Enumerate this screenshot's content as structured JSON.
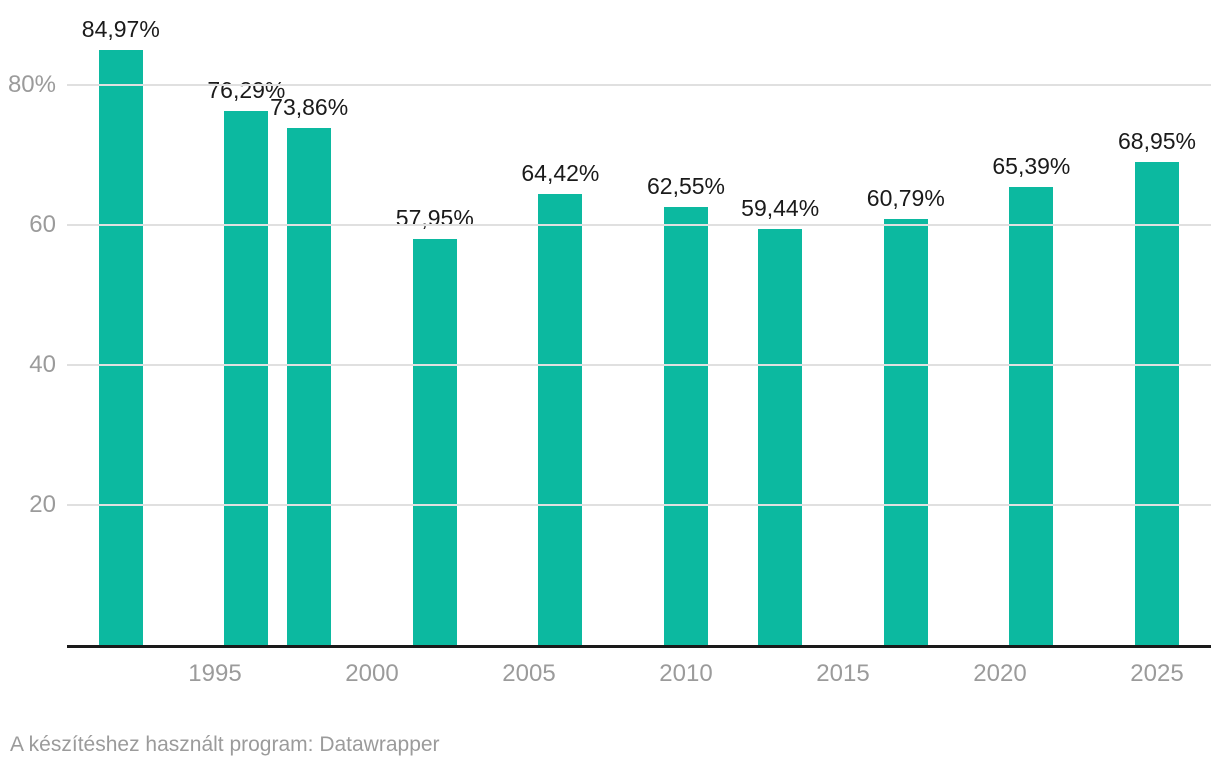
{
  "chart_data": {
    "type": "bar",
    "x": [
      1992,
      1996,
      1998,
      2002,
      2006,
      2010,
      2013,
      2017,
      2021,
      2025
    ],
    "values": [
      84.97,
      76.29,
      73.86,
      57.95,
      64.42,
      62.55,
      59.44,
      60.79,
      65.39,
      68.95
    ],
    "value_labels": [
      "84,97%",
      "76,29%",
      "73,86%",
      "57,95%",
      "64,42%",
      "62,55%",
      "59,44%",
      "60,79%",
      "65,39%",
      "68,95%"
    ],
    "title": "",
    "xlabel": "",
    "ylabel": "",
    "ylim": [
      0,
      90
    ],
    "xlim": [
      1990.3,
      2026.7
    ],
    "yticks": [
      {
        "value": 20,
        "label": "20"
      },
      {
        "value": 40,
        "label": "40"
      },
      {
        "value": 60,
        "label": "60"
      },
      {
        "value": 80,
        "label": "80%"
      }
    ],
    "xticks": [
      {
        "value": 1995,
        "label": "1995"
      },
      {
        "value": 2000,
        "label": "2000"
      },
      {
        "value": 2005,
        "label": "2005"
      },
      {
        "value": 2010,
        "label": "2010"
      },
      {
        "value": 2015,
        "label": "2015"
      },
      {
        "value": 2020,
        "label": "2020"
      },
      {
        "value": 2025,
        "label": "2025"
      }
    ],
    "grid": "horizontal",
    "legend": "none"
  },
  "colors": {
    "bar": "#0cb9a0",
    "axis_line": "#1a1a1a",
    "grid_line": "#e0e0e0",
    "tick_label": "#9b9b9b",
    "value_label": "#1a1a1a",
    "background": "#ffffff"
  },
  "footer": {
    "text": "A készítéshez használt program: Datawrapper"
  }
}
